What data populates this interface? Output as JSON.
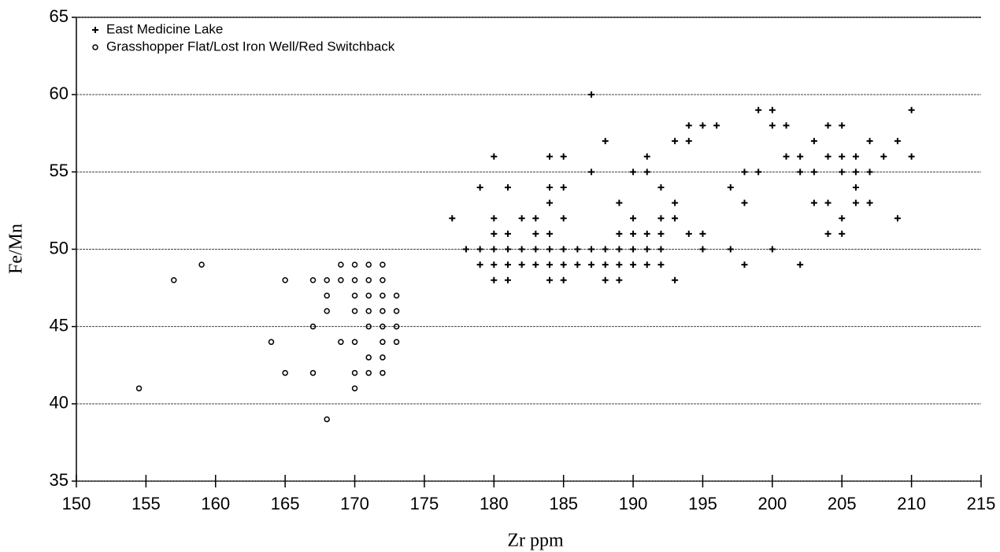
{
  "chart_data": {
    "type": "scatter",
    "x_label": "Zr ppm",
    "y_label": "Fe/Mn",
    "xlim": [
      150,
      215
    ],
    "xticks": [
      150,
      155,
      160,
      165,
      170,
      175,
      180,
      185,
      190,
      195,
      200,
      205,
      210,
      215
    ],
    "ylim": [
      35,
      65
    ],
    "yticks": [
      35,
      40,
      45,
      50,
      55,
      60,
      65
    ],
    "grid": true,
    "legend": "upper-left",
    "series": [
      {
        "name": "East Medicine Lake",
        "marker": "plus",
        "color": "#000000",
        "x": [
          177,
          178,
          179,
          179,
          179,
          180,
          180,
          180,
          180,
          180,
          180,
          181,
          181,
          181,
          181,
          181,
          182,
          182,
          182,
          183,
          183,
          183,
          183,
          184,
          184,
          184,
          184,
          184,
          184,
          184,
          185,
          185,
          185,
          185,
          185,
          185,
          186,
          186,
          187,
          187,
          187,
          187,
          188,
          188,
          188,
          188,
          189,
          189,
          189,
          189,
          189,
          190,
          190,
          190,
          190,
          190,
          191,
          191,
          191,
          191,
          191,
          192,
          192,
          192,
          192,
          192,
          193,
          193,
          193,
          193,
          194,
          194,
          194,
          195,
          195,
          195,
          196,
          197,
          197,
          198,
          198,
          198,
          199,
          199,
          200,
          200,
          200,
          201,
          201,
          202,
          202,
          202,
          203,
          203,
          203,
          204,
          204,
          204,
          204,
          205,
          205,
          205,
          205,
          205,
          206,
          206,
          206,
          206,
          207,
          207,
          207,
          208,
          209,
          209,
          210,
          210
        ],
        "y": [
          52,
          50,
          54,
          50,
          49,
          56,
          52,
          51,
          50,
          49,
          48,
          54,
          51,
          50,
          49,
          48,
          52,
          50,
          49,
          52,
          51,
          50,
          49,
          56,
          54,
          53,
          51,
          50,
          49,
          48,
          56,
          54,
          52,
          50,
          49,
          48,
          50,
          49,
          60,
          55,
          50,
          49,
          57,
          50,
          49,
          48,
          53,
          51,
          50,
          49,
          48,
          55,
          52,
          51,
          50,
          49,
          56,
          55,
          51,
          50,
          49,
          54,
          52,
          51,
          50,
          49,
          57,
          53,
          52,
          48,
          58,
          57,
          51,
          58,
          51,
          50,
          58,
          54,
          50,
          55,
          53,
          49,
          59,
          55,
          59,
          58,
          50,
          58,
          56,
          56,
          55,
          49,
          57,
          55,
          53,
          58,
          56,
          53,
          51,
          58,
          56,
          55,
          52,
          51,
          56,
          55,
          54,
          53,
          57,
          55,
          53,
          56,
          57,
          52,
          59,
          56
        ]
      },
      {
        "name": "Grasshopper Flat/Lost Iron Well/Red Switchback",
        "marker": "circle",
        "color": "#000000",
        "x": [
          154.5,
          157,
          159,
          164,
          165,
          165,
          167,
          167,
          167,
          168,
          168,
          168,
          168,
          169,
          169,
          169,
          170,
          170,
          170,
          170,
          170,
          170,
          170,
          171,
          171,
          171,
          171,
          171,
          171,
          171,
          172,
          172,
          172,
          172,
          172,
          172,
          172,
          172,
          173,
          173,
          173,
          173
        ],
        "y": [
          41,
          48,
          49,
          44,
          48,
          42,
          48,
          45,
          42,
          48,
          47,
          46,
          39,
          49,
          48,
          44,
          49,
          48,
          47,
          46,
          44,
          42,
          41,
          49,
          48,
          47,
          46,
          45,
          43,
          42,
          49,
          48,
          47,
          46,
          45,
          44,
          43,
          42,
          47,
          46,
          45,
          44
        ]
      }
    ]
  }
}
